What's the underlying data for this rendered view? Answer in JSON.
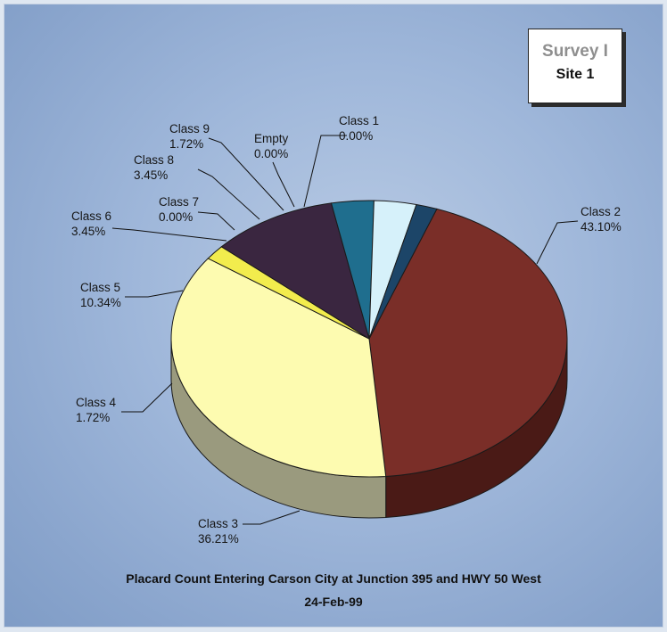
{
  "legend_box": {
    "title": "Survey I",
    "subtitle": "Site 1"
  },
  "caption": {
    "line1": "Placard Count Entering Carson City at Junction 395 and HWY 50 West",
    "line2": "24-Feb-99"
  },
  "chart_data": {
    "type": "pie",
    "style": "3d",
    "title": "Placard Count Entering Carson City at Junction 395 and HWY 50 West",
    "subtitle": "24-Feb-99",
    "start_angle_deg": 290,
    "direction": "clockwise",
    "slices": [
      {
        "label": "Class 1",
        "value": 0.0,
        "pct": "0.00%",
        "color": "#1d3f66",
        "side": "#12294a"
      },
      {
        "label": "Class 2",
        "value": 43.1,
        "pct": "43.10%",
        "color": "#7a2e28",
        "side": "#4a1a16"
      },
      {
        "label": "Class 3",
        "value": 36.21,
        "pct": "36.21%",
        "color": "#fdfbb0",
        "side": "#9a9a7e"
      },
      {
        "label": "Class 4",
        "value": 1.72,
        "pct": "1.72%",
        "color": "#f2ec4d",
        "side": "#8a8430"
      },
      {
        "label": "Class 5",
        "value": 10.34,
        "pct": "10.34%",
        "color": "#3a2640",
        "side": "#22162a"
      },
      {
        "label": "Class 6",
        "value": 3.45,
        "pct": "3.45%",
        "color": "#1f6e8e",
        "side": "#124559"
      },
      {
        "label": "Class 7",
        "value": 0.0,
        "pct": "0.00%",
        "color": "#6d8fb0",
        "side": "#4a6580"
      },
      {
        "label": "Class 8",
        "value": 3.45,
        "pct": "3.45%",
        "color": "#d6f1fa",
        "side": "#8aa3ad"
      },
      {
        "label": "Class 9",
        "value": 1.72,
        "pct": "1.72%",
        "color": "#1c4568",
        "side": "#112b42"
      },
      {
        "label": "Empty",
        "value": 0.0,
        "pct": "0.00%",
        "color": "#2a3a55",
        "side": "#1a2436"
      }
    ]
  }
}
